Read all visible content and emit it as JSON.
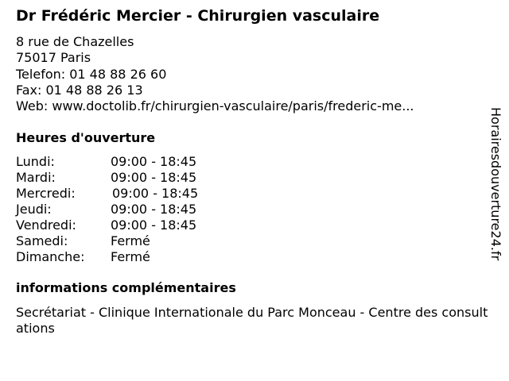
{
  "title": "Dr Frédéric Mercier - Chirurgien vasculaire",
  "address": {
    "street": "8 rue de Chazelles",
    "city": "75017 Paris",
    "phone": "Telefon: 01 48 88 26 60",
    "fax": "Fax: 01 48 88 26 13",
    "web": "Web: www.doctolib.fr/chirurgien-vasculaire/paris/frederic-me..."
  },
  "hours": {
    "heading": "Heures d'ouverture",
    "rows": [
      {
        "day": "Lundi:",
        "time": "09:00 - 18:45"
      },
      {
        "day": "Mardi:",
        "time": "09:00 - 18:45"
      },
      {
        "day": "Mercredi:",
        "time": "09:00 - 18:45"
      },
      {
        "day": "Jeudi:",
        "time": "09:00 - 18:45"
      },
      {
        "day": "Vendredi:",
        "time": "09:00 - 18:45"
      },
      {
        "day": "Samedi:",
        "time": "Fermé"
      },
      {
        "day": "Dimanche:",
        "time": "Fermé"
      }
    ]
  },
  "info": {
    "heading": "informations complémentaires",
    "text": "Secrétariat - Clinique Internationale du Parc Monceau - Centre des consultations"
  },
  "watermark": "Horairesdouverture24.fr"
}
